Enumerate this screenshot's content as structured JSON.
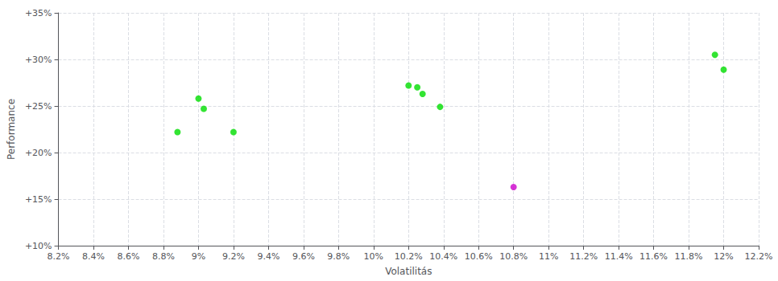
{
  "chart_data": {
    "type": "scatter",
    "xlabel": "Volatilitás",
    "ylabel": "Performance",
    "xlim": [
      0.082,
      0.122
    ],
    "ylim": [
      0.1,
      0.35
    ],
    "xticks": [
      {
        "value": 0.082,
        "label": "8.2%"
      },
      {
        "value": 0.084,
        "label": "8.4%"
      },
      {
        "value": 0.086,
        "label": "8.6%"
      },
      {
        "value": 0.088,
        "label": "8.8%"
      },
      {
        "value": 0.09,
        "label": "9%"
      },
      {
        "value": 0.092,
        "label": "9.2%"
      },
      {
        "value": 0.094,
        "label": "9.4%"
      },
      {
        "value": 0.096,
        "label": "9.6%"
      },
      {
        "value": 0.098,
        "label": "9.8%"
      },
      {
        "value": 0.1,
        "label": "10%"
      },
      {
        "value": 0.102,
        "label": "10.2%"
      },
      {
        "value": 0.104,
        "label": "10.4%"
      },
      {
        "value": 0.106,
        "label": "10.6%"
      },
      {
        "value": 0.108,
        "label": "10.8%"
      },
      {
        "value": 0.11,
        "label": "11%"
      },
      {
        "value": 0.112,
        "label": "11.2%"
      },
      {
        "value": 0.114,
        "label": "11.4%"
      },
      {
        "value": 0.116,
        "label": "11.6%"
      },
      {
        "value": 0.118,
        "label": "11.8%"
      },
      {
        "value": 0.12,
        "label": "12%"
      },
      {
        "value": 0.122,
        "label": "12.2%"
      }
    ],
    "yticks": [
      {
        "value": 0.1,
        "label": "+10%"
      },
      {
        "value": 0.15,
        "label": "+15%"
      },
      {
        "value": 0.2,
        "label": "+20%"
      },
      {
        "value": 0.25,
        "label": "+25%"
      },
      {
        "value": 0.3,
        "label": "+30%"
      },
      {
        "value": 0.35,
        "label": "+35%"
      }
    ],
    "grid": true,
    "series": [
      {
        "color": "#00dd00",
        "values": [
          [
            0.09,
            0.258
          ],
          [
            0.0903,
            0.247
          ],
          [
            0.0888,
            0.222
          ],
          [
            0.092,
            0.222
          ],
          [
            0.102,
            0.272
          ],
          [
            0.1025,
            0.27
          ],
          [
            0.1028,
            0.263
          ],
          [
            0.1038,
            0.249
          ],
          [
            0.1195,
            0.305
          ],
          [
            0.12,
            0.289
          ]
        ]
      },
      {
        "color": "#cc00cc",
        "values": [
          [
            0.108,
            0.163
          ]
        ]
      }
    ]
  }
}
